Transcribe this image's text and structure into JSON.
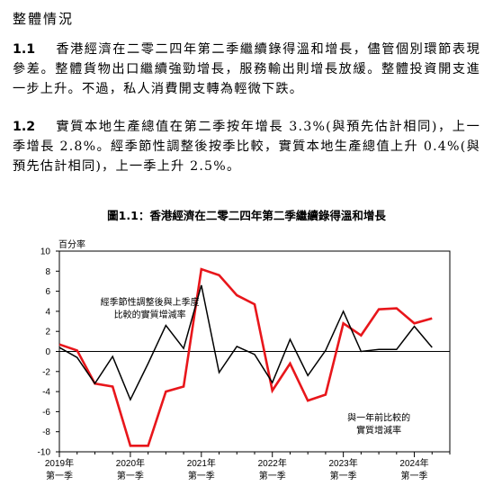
{
  "section": {
    "title": "整體情況"
  },
  "paragraphs": [
    {
      "num": "1.1",
      "text": "香港經濟在二零二四年第二季繼續錄得溫和增長，儘管個別環節表現參差。整體貨物出口繼續強勁增長，服務輸出則增長放緩。整體投資開支進一步上升。不過，私人消費開支轉為輕微下跌。"
    },
    {
      "num": "1.2",
      "text": "實質本地生產總值在第二季按年增長 3.3%(與預先估計相同)，上一季增長 2.8%。經季節性調整後按季比較，實質本地生產總值上升 0.4%(與預先估計相同)，上一季上升 2.5%。"
    }
  ],
  "chart_data": {
    "type": "line",
    "title": "圖1.1：香港經濟在二零二四年第二季繼續錄得溫和增長",
    "ylabel": "百分率",
    "ylim": [
      -10,
      10
    ],
    "yticks": [
      -10,
      -8,
      -6,
      -4,
      -2,
      0,
      2,
      4,
      6,
      8,
      10
    ],
    "xlim": [
      0,
      22
    ],
    "xticks": [
      {
        "q": 0,
        "year": "2019年",
        "quarter": "第一季"
      },
      {
        "q": 4,
        "year": "2020年",
        "quarter": "第一季"
      },
      {
        "q": 8,
        "year": "2021年",
        "quarter": "第一季"
      },
      {
        "q": 12,
        "year": "2022年",
        "quarter": "第一季"
      },
      {
        "q": 16,
        "year": "2023年",
        "quarter": "第一季"
      },
      {
        "q": 20,
        "year": "2024年",
        "quarter": "第一季"
      }
    ],
    "grid": false,
    "series": [
      {
        "name": "與一年前比較的實質增減率",
        "color": "#e8161b",
        "annotation": [
          "與一年前比較的",
          "實質增減率"
        ],
        "values": [
          0.7,
          0.1,
          -3.2,
          -3.5,
          -9.4,
          -9.4,
          -4.0,
          -3.5,
          8.2,
          7.6,
          5.6,
          4.7,
          -3.9,
          -1.2,
          -4.9,
          -4.3,
          2.8,
          1.6,
          4.2,
          4.3,
          2.8,
          3.3
        ]
      },
      {
        "name": "經季節性調整後與上季度比較的實質增減率",
        "color": "#000000",
        "annotation": [
          "經季節性調整後與上季度",
          "比較的實質增減率"
        ],
        "values": [
          0.4,
          -0.6,
          -3.2,
          -0.5,
          -4.8,
          -1.2,
          2.6,
          0.3,
          6.6,
          -2.1,
          0.5,
          -0.3,
          -3.1,
          1.2,
          -2.4,
          0.1,
          4.0,
          0.0,
          0.2,
          0.2,
          2.5,
          0.4
        ]
      }
    ]
  }
}
